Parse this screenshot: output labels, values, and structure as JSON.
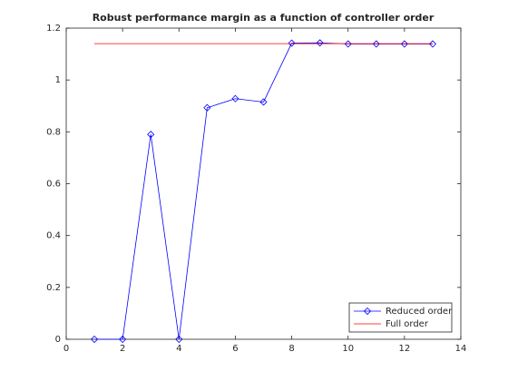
{
  "chart_data": {
    "type": "line",
    "title": "Robust performance margin as a function of controller order",
    "x": [
      1,
      2,
      3,
      4,
      5,
      6,
      7,
      8,
      9,
      10,
      11,
      12,
      13
    ],
    "series": [
      {
        "name": "Reduced order",
        "color": "#0000ff",
        "marker": "diamond",
        "values": [
          0,
          0,
          0.79,
          0,
          0.893,
          0.928,
          0.915,
          1.142,
          1.143,
          1.139,
          1.139,
          1.139,
          1.139
        ]
      },
      {
        "name": "Full order",
        "color": "#ff0000",
        "x": [
          1,
          13
        ],
        "values": [
          1.14,
          1.14
        ]
      }
    ],
    "xlim": [
      0,
      14
    ],
    "xticks": [
      0,
      2,
      4,
      6,
      8,
      10,
      12,
      14
    ],
    "ylim": [
      0,
      1.2
    ],
    "yticks": [
      0,
      0.2,
      0.4,
      0.6,
      0.8,
      1,
      1.2
    ],
    "legend": "bottom-right"
  }
}
